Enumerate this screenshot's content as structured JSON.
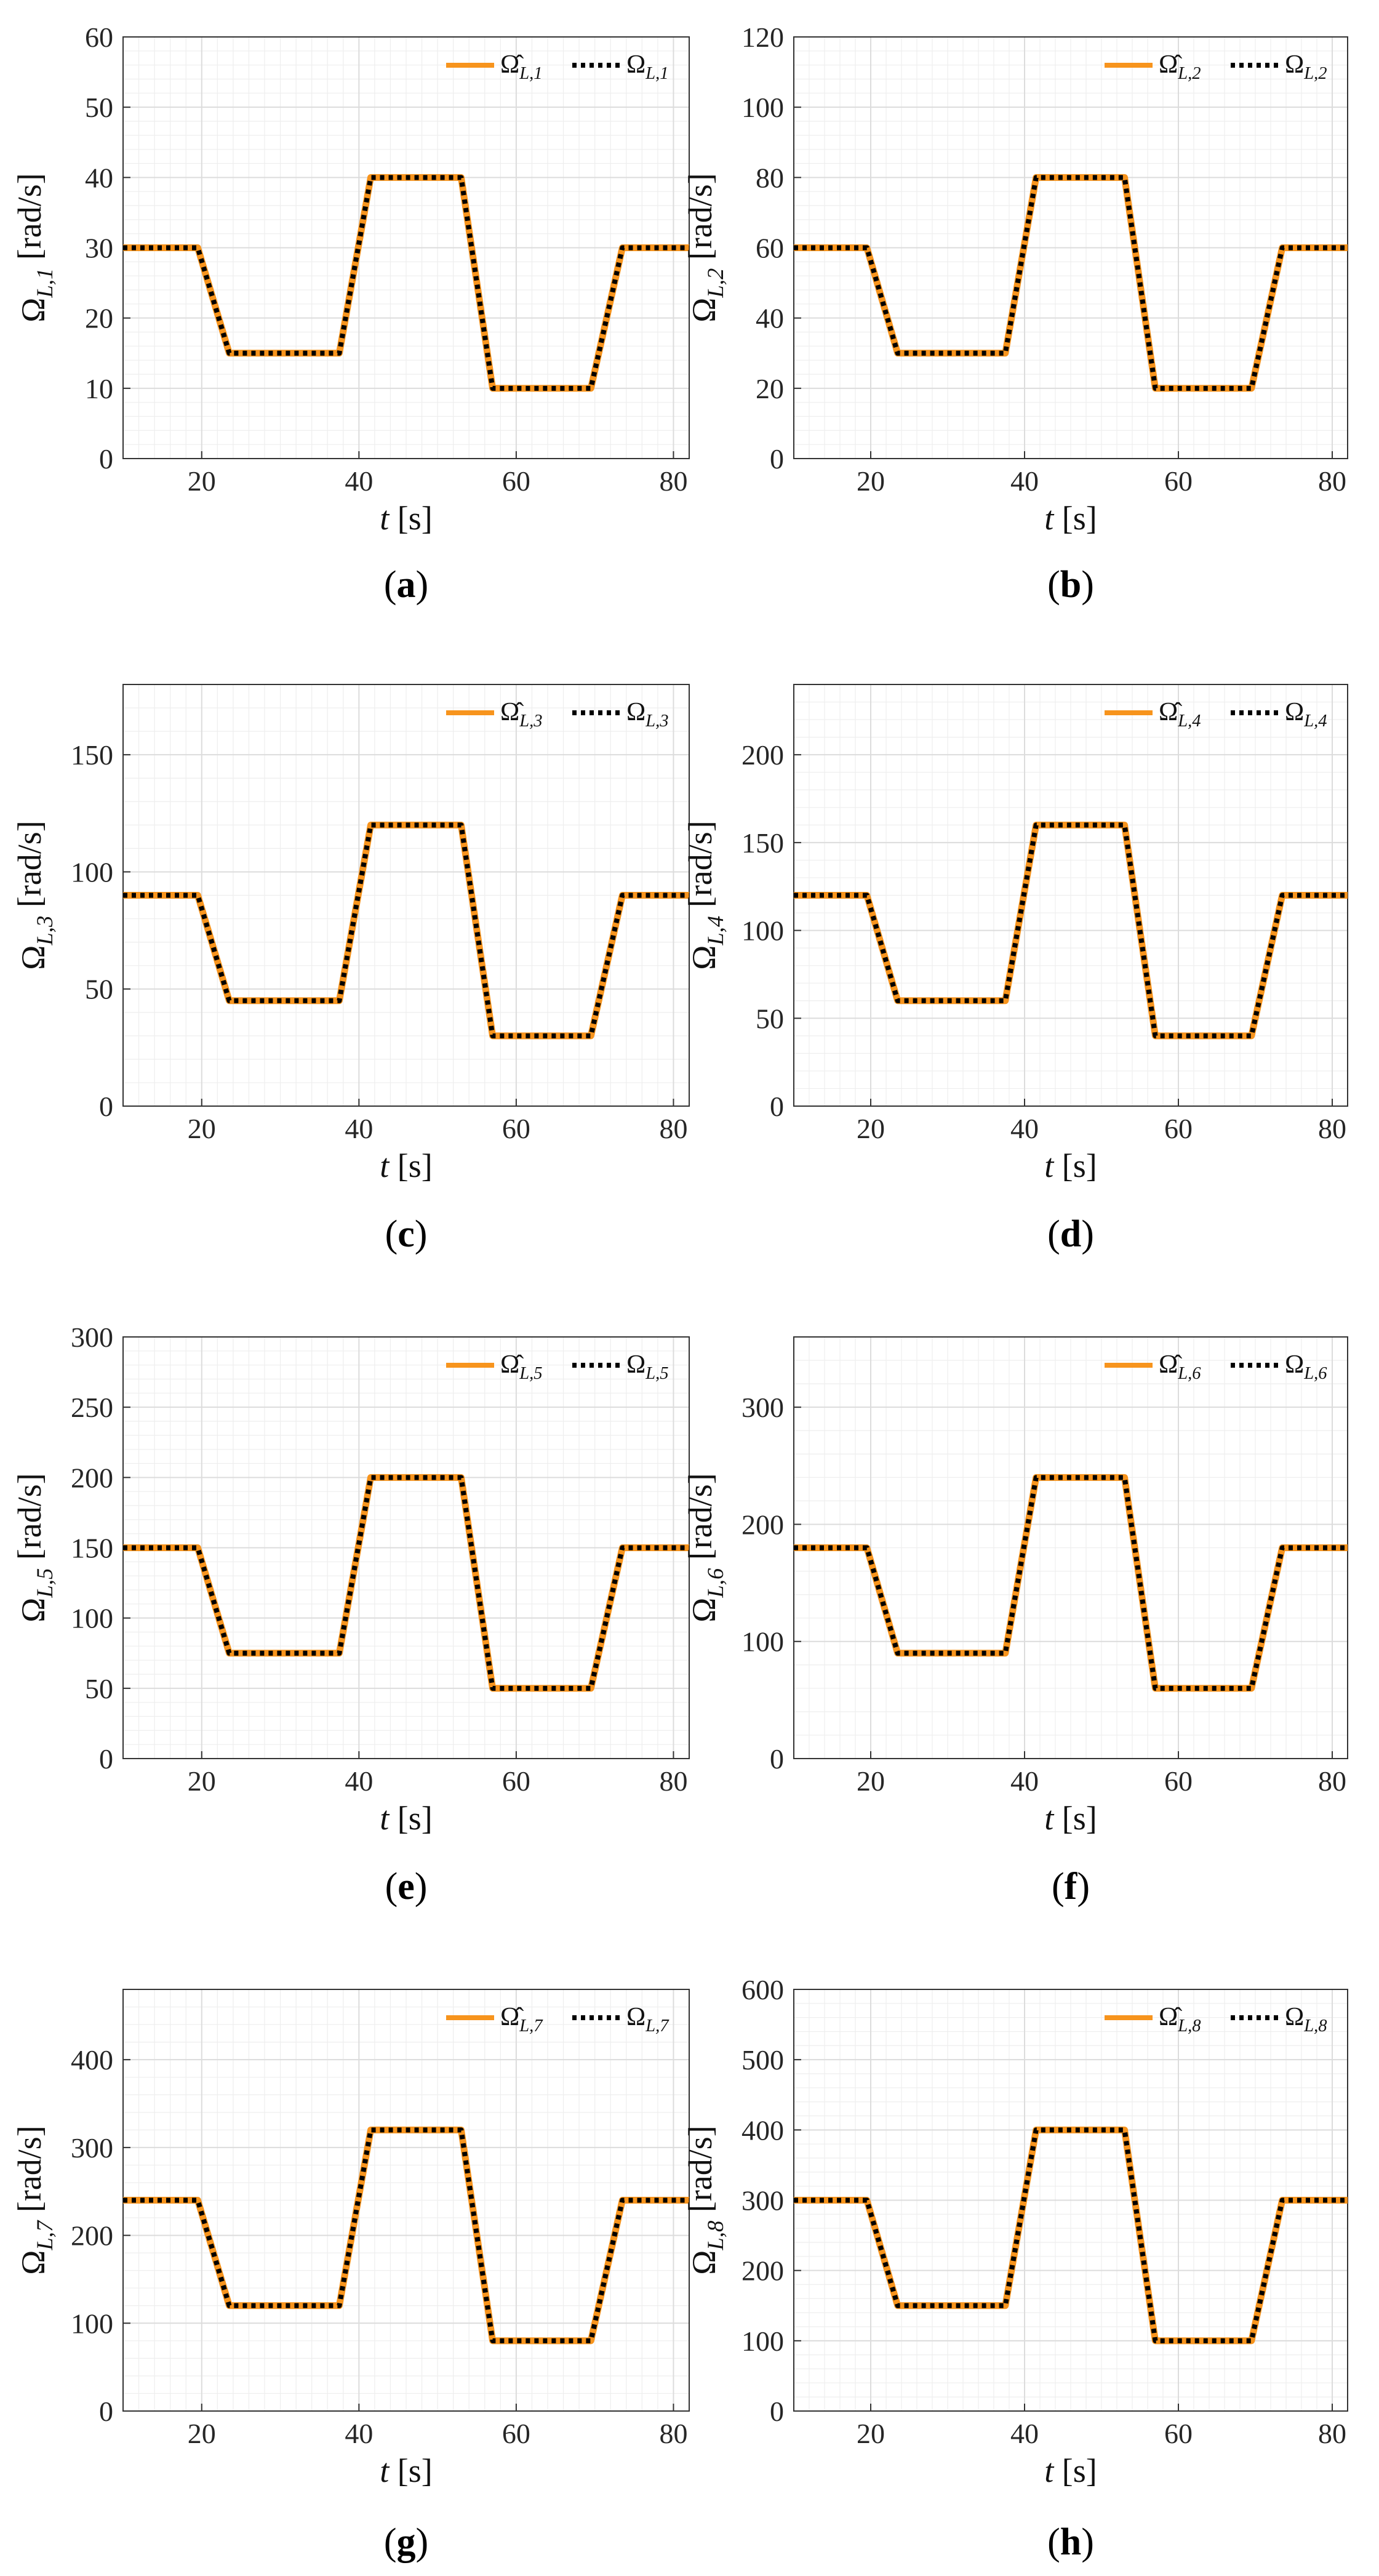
{
  "chart_data": [
    {
      "type": "line",
      "caption": "(a)",
      "ylabel": "Ω_{L,1}",
      "ylabel_unit": "[rad/s]",
      "xlabel": "t",
      "xlabel_unit": "[s]",
      "xlim": [
        10,
        82
      ],
      "ylim": [
        0,
        60
      ],
      "xticks": [
        20,
        40,
        60,
        80
      ],
      "yticks": [
        0,
        10,
        20,
        30,
        40,
        50,
        60
      ],
      "grid": true,
      "legend_position": "top-right",
      "series": [
        {
          "name": "Ω̂_{L,1}",
          "style": "solid",
          "color": "#f7941d",
          "x": [
            10,
            19.5,
            23.5,
            37.5,
            41.5,
            53,
            57,
            69.5,
            73.5,
            82
          ],
          "y": [
            30,
            30,
            15,
            15,
            40,
            40,
            10,
            10,
            30,
            30
          ]
        },
        {
          "name": "Ω_{L,1}",
          "style": "dotted",
          "color": "#000000",
          "x": [
            10,
            19.5,
            23.5,
            37.5,
            41.5,
            53,
            57,
            69.5,
            73.5,
            82
          ],
          "y": [
            30,
            30,
            15,
            15,
            40,
            40,
            10,
            10,
            30,
            30
          ]
        }
      ]
    },
    {
      "type": "line",
      "caption": "(b)",
      "ylabel": "Ω_{L,2}",
      "ylabel_unit": "[rad/s]",
      "xlabel": "t",
      "xlabel_unit": "[s]",
      "xlim": [
        10,
        82
      ],
      "ylim": [
        0,
        120
      ],
      "xticks": [
        20,
        40,
        60,
        80
      ],
      "yticks": [
        0,
        20,
        40,
        60,
        80,
        100,
        120
      ],
      "grid": true,
      "legend_position": "top-right",
      "series": [
        {
          "name": "Ω̂_{L,2}",
          "style": "solid",
          "color": "#f7941d",
          "x": [
            10,
            19.5,
            23.5,
            37.5,
            41.5,
            53,
            57,
            69.5,
            73.5,
            82
          ],
          "y": [
            60,
            60,
            30,
            30,
            80,
            80,
            20,
            20,
            60,
            60
          ]
        },
        {
          "name": "Ω_{L,2}",
          "style": "dotted",
          "color": "#000000",
          "x": [
            10,
            19.5,
            23.5,
            37.5,
            41.5,
            53,
            57,
            69.5,
            73.5,
            82
          ],
          "y": [
            60,
            60,
            30,
            30,
            80,
            80,
            20,
            20,
            60,
            60
          ]
        }
      ]
    },
    {
      "type": "line",
      "caption": "(c)",
      "ylabel": "Ω_{L,3}",
      "ylabel_unit": "[rad/s]",
      "xlabel": "t",
      "xlabel_unit": "[s]",
      "xlim": [
        10,
        82
      ],
      "ylim": [
        0,
        180
      ],
      "xticks": [
        20,
        40,
        60,
        80
      ],
      "yticks": [
        0,
        50,
        100,
        150
      ],
      "grid": true,
      "legend_position": "top-right",
      "series": [
        {
          "name": "Ω̂_{L,3}",
          "style": "solid",
          "color": "#f7941d",
          "x": [
            10,
            19.5,
            23.5,
            37.5,
            41.5,
            53,
            57,
            69.5,
            73.5,
            82
          ],
          "y": [
            90,
            90,
            45,
            45,
            120,
            120,
            30,
            30,
            90,
            90
          ]
        },
        {
          "name": "Ω_{L,3}",
          "style": "dotted",
          "color": "#000000",
          "x": [
            10,
            19.5,
            23.5,
            37.5,
            41.5,
            53,
            57,
            69.5,
            73.5,
            82
          ],
          "y": [
            90,
            90,
            45,
            45,
            120,
            120,
            30,
            30,
            90,
            90
          ]
        }
      ]
    },
    {
      "type": "line",
      "caption": "(d)",
      "ylabel": "Ω_{L,4}",
      "ylabel_unit": "[rad/s]",
      "xlabel": "t",
      "xlabel_unit": "[s]",
      "xlim": [
        10,
        82
      ],
      "ylim": [
        0,
        240
      ],
      "xticks": [
        20,
        40,
        60,
        80
      ],
      "yticks": [
        0,
        50,
        100,
        150,
        200
      ],
      "grid": true,
      "legend_position": "top-right",
      "series": [
        {
          "name": "Ω̂_{L,4}",
          "style": "solid",
          "color": "#f7941d",
          "x": [
            10,
            19.5,
            23.5,
            37.5,
            41.5,
            53,
            57,
            69.5,
            73.5,
            82
          ],
          "y": [
            120,
            120,
            60,
            60,
            160,
            160,
            40,
            40,
            120,
            120
          ]
        },
        {
          "name": "Ω_{L,4}",
          "style": "dotted",
          "color": "#000000",
          "x": [
            10,
            19.5,
            23.5,
            37.5,
            41.5,
            53,
            57,
            69.5,
            73.5,
            82
          ],
          "y": [
            120,
            120,
            60,
            60,
            160,
            160,
            40,
            40,
            120,
            120
          ]
        }
      ]
    },
    {
      "type": "line",
      "caption": "(e)",
      "ylabel": "Ω_{L,5}",
      "ylabel_unit": "[rad/s]",
      "xlabel": "t",
      "xlabel_unit": "[s]",
      "xlim": [
        10,
        82
      ],
      "ylim": [
        0,
        300
      ],
      "xticks": [
        20,
        40,
        60,
        80
      ],
      "yticks": [
        0,
        50,
        100,
        150,
        200,
        250,
        300
      ],
      "grid": true,
      "legend_position": "top-right",
      "series": [
        {
          "name": "Ω̂_{L,5}",
          "style": "solid",
          "color": "#f7941d",
          "x": [
            10,
            19.5,
            23.5,
            37.5,
            41.5,
            53,
            57,
            69.5,
            73.5,
            82
          ],
          "y": [
            150,
            150,
            75,
            75,
            200,
            200,
            50,
            50,
            150,
            150
          ]
        },
        {
          "name": "Ω_{L,5}",
          "style": "dotted",
          "color": "#000000",
          "x": [
            10,
            19.5,
            23.5,
            37.5,
            41.5,
            53,
            57,
            69.5,
            73.5,
            82
          ],
          "y": [
            150,
            150,
            75,
            75,
            200,
            200,
            50,
            50,
            150,
            150
          ]
        }
      ]
    },
    {
      "type": "line",
      "caption": "(f)",
      "ylabel": "Ω_{L,6}",
      "ylabel_unit": "[rad/s]",
      "xlabel": "t",
      "xlabel_unit": "[s]",
      "xlim": [
        10,
        82
      ],
      "ylim": [
        0,
        360
      ],
      "xticks": [
        20,
        40,
        60,
        80
      ],
      "yticks": [
        0,
        100,
        200,
        300
      ],
      "grid": true,
      "legend_position": "top-right",
      "series": [
        {
          "name": "Ω̂_{L,6}",
          "style": "solid",
          "color": "#f7941d",
          "x": [
            10,
            19.5,
            23.5,
            37.5,
            41.5,
            53,
            57,
            69.5,
            73.5,
            82
          ],
          "y": [
            180,
            180,
            90,
            90,
            240,
            240,
            60,
            60,
            180,
            180
          ]
        },
        {
          "name": "Ω_{L,6}",
          "style": "dotted",
          "color": "#000000",
          "x": [
            10,
            19.5,
            23.5,
            37.5,
            41.5,
            53,
            57,
            69.5,
            73.5,
            82
          ],
          "y": [
            180,
            180,
            90,
            90,
            240,
            240,
            60,
            60,
            180,
            180
          ]
        }
      ]
    },
    {
      "type": "line",
      "caption": "(g)",
      "ylabel": "Ω_{L,7}",
      "ylabel_unit": "[rad/s]",
      "xlabel": "t",
      "xlabel_unit": "[s]",
      "xlim": [
        10,
        82
      ],
      "ylim": [
        0,
        480
      ],
      "xticks": [
        20,
        40,
        60,
        80
      ],
      "yticks": [
        0,
        100,
        200,
        300,
        400
      ],
      "grid": true,
      "legend_position": "top-right",
      "series": [
        {
          "name": "Ω̂_{L,7}",
          "style": "solid",
          "color": "#f7941d",
          "x": [
            10,
            19.5,
            23.5,
            37.5,
            41.5,
            53,
            57,
            69.5,
            73.5,
            82
          ],
          "y": [
            240,
            240,
            120,
            120,
            320,
            320,
            80,
            80,
            240,
            240
          ]
        },
        {
          "name": "Ω_{L,7}",
          "style": "dotted",
          "color": "#000000",
          "x": [
            10,
            19.5,
            23.5,
            37.5,
            41.5,
            53,
            57,
            69.5,
            73.5,
            82
          ],
          "y": [
            240,
            240,
            120,
            120,
            320,
            320,
            80,
            80,
            240,
            240
          ]
        }
      ]
    },
    {
      "type": "line",
      "caption": "(h)",
      "ylabel": "Ω_{L,8}",
      "ylabel_unit": "[rad/s]",
      "xlabel": "t",
      "xlabel_unit": "[s]",
      "xlim": [
        10,
        82
      ],
      "ylim": [
        0,
        600
      ],
      "xticks": [
        20,
        40,
        60,
        80
      ],
      "yticks": [
        0,
        100,
        200,
        300,
        400,
        500,
        600
      ],
      "grid": true,
      "legend_position": "top-right",
      "series": [
        {
          "name": "Ω̂_{L,8}",
          "style": "solid",
          "color": "#f7941d",
          "x": [
            10,
            19.5,
            23.5,
            37.5,
            41.5,
            53,
            57,
            69.5,
            73.5,
            82
          ],
          "y": [
            300,
            300,
            150,
            150,
            400,
            400,
            100,
            100,
            300,
            300
          ]
        },
        {
          "name": "Ω_{L,8}",
          "style": "dotted",
          "color": "#000000",
          "x": [
            10,
            19.5,
            23.5,
            37.5,
            41.5,
            53,
            57,
            69.5,
            73.5,
            82
          ],
          "y": [
            300,
            300,
            150,
            150,
            400,
            400,
            100,
            100,
            300,
            300
          ]
        }
      ]
    }
  ]
}
